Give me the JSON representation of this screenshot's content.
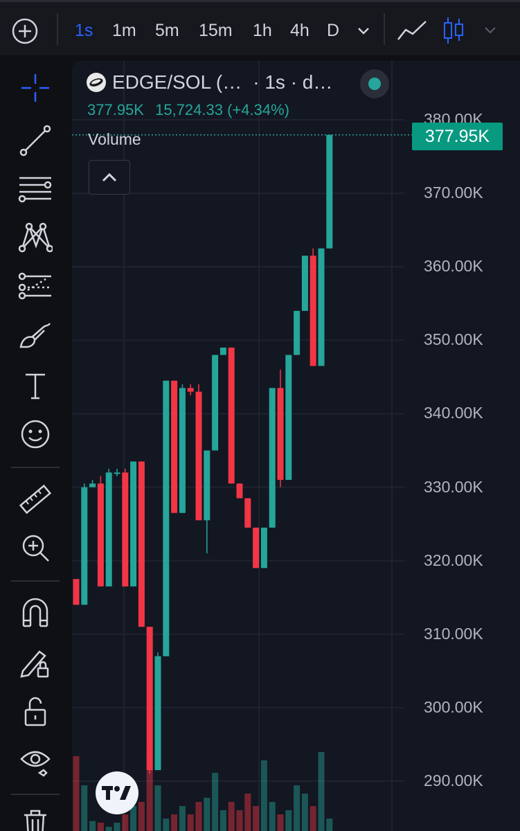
{
  "toolbar": {
    "timeframes": [
      "1s",
      "1m",
      "5m",
      "15m",
      "1h",
      "4h",
      "D"
    ],
    "active_timeframe": "1s",
    "icons": [
      "plus-circle-icon",
      "chevron-down-icon",
      "line-chart-icon",
      "candles-icon",
      "chevron-down-icon"
    ]
  },
  "left_tools": [
    "crosshair-icon",
    "trend-line-icon",
    "horizontal-lines-icon",
    "pattern-icon",
    "projection-icon",
    "brush-icon",
    "text-icon",
    "emoji-icon",
    "ruler-icon",
    "zoom-in-icon",
    "magnet-icon",
    "lock-drawing-icon",
    "unlock-icon",
    "eye-icon",
    "trash-icon"
  ],
  "legend": {
    "symbol": "EDGE/SOL (…",
    "timeframe_text": "· 1s · d…",
    "last": "377.95K",
    "change": "15,724.33 (+4.34%)",
    "volume_label": "Volume"
  },
  "price_tag": "377.95K",
  "colors": {
    "up": "#26a69a",
    "down": "#f23645",
    "accent": "#2962ff",
    "tag": "#089981"
  },
  "chart_data": {
    "type": "candlestick",
    "y_ticks": [
      "380.00K",
      "370.00K",
      "360.00K",
      "350.00K",
      "340.00K",
      "330.00K",
      "320.00K",
      "310.00K",
      "300.00K",
      "290.00K"
    ],
    "ylim": [
      286000,
      381000
    ],
    "candles": [
      {
        "o": 317.5,
        "h": 317.5,
        "l": 314.0,
        "c": 314.0
      },
      {
        "o": 314.0,
        "h": 330.5,
        "l": 314.0,
        "c": 330.0
      },
      {
        "o": 330.0,
        "h": 331.0,
        "l": 330.0,
        "c": 330.5
      },
      {
        "o": 330.5,
        "h": 331.5,
        "l": 316.5,
        "c": 316.5
      },
      {
        "o": 316.5,
        "h": 332.5,
        "l": 316.5,
        "c": 332.0
      },
      {
        "o": 332.0,
        "h": 332.5,
        "l": 331.5,
        "c": 332.0
      },
      {
        "o": 332.0,
        "h": 332.5,
        "l": 316.5,
        "c": 316.5
      },
      {
        "o": 316.5,
        "h": 333.5,
        "l": 316.5,
        "c": 333.5
      },
      {
        "o": 333.5,
        "h": 333.5,
        "l": 311.0,
        "c": 311.0
      },
      {
        "o": 311.0,
        "h": 311.0,
        "l": 291.0,
        "c": 291.5
      },
      {
        "o": 291.5,
        "h": 307.5,
        "l": 291.5,
        "c": 307.0
      },
      {
        "o": 307.0,
        "h": 344.5,
        "l": 307.0,
        "c": 344.5
      },
      {
        "o": 344.5,
        "h": 344.5,
        "l": 326.5,
        "c": 326.5
      },
      {
        "o": 326.5,
        "h": 344.0,
        "l": 326.5,
        "c": 343.5
      },
      {
        "o": 343.5,
        "h": 344.0,
        "l": 342.5,
        "c": 343.0
      },
      {
        "o": 343.0,
        "h": 344.0,
        "l": 325.5,
        "c": 325.5
      },
      {
        "o": 325.5,
        "h": 335.0,
        "l": 321.0,
        "c": 335.0
      },
      {
        "o": 335.0,
        "h": 348.0,
        "l": 335.0,
        "c": 348.0
      },
      {
        "o": 348.0,
        "h": 349.0,
        "l": 348.0,
        "c": 349.0
      },
      {
        "o": 349.0,
        "h": 349.0,
        "l": 330.5,
        "c": 330.5
      },
      {
        "o": 330.5,
        "h": 330.5,
        "l": 328.5,
        "c": 328.5
      },
      {
        "o": 328.5,
        "h": 328.5,
        "l": 324.5,
        "c": 324.5
      },
      {
        "o": 324.5,
        "h": 324.5,
        "l": 319.0,
        "c": 319.0
      },
      {
        "o": 319.0,
        "h": 324.5,
        "l": 319.0,
        "c": 324.5
      },
      {
        "o": 324.5,
        "h": 343.5,
        "l": 324.5,
        "c": 343.5
      },
      {
        "o": 343.5,
        "h": 346.0,
        "l": 330.0,
        "c": 331.0
      },
      {
        "o": 331.0,
        "h": 348.0,
        "l": 331.0,
        "c": 348.0
      },
      {
        "o": 348.0,
        "h": 354.0,
        "l": 348.0,
        "c": 354.0
      },
      {
        "o": 354.0,
        "h": 361.5,
        "l": 354.0,
        "c": 361.5
      },
      {
        "o": 361.5,
        "h": 362.5,
        "l": 346.5,
        "c": 346.5
      },
      {
        "o": 346.5,
        "h": 362.5,
        "l": 346.5,
        "c": 362.5
      },
      {
        "o": 362.5,
        "h": 377.95,
        "l": 362.5,
        "c": 377.95
      }
    ],
    "volume_relative": [
      0.9,
      0.55,
      0.12,
      0.1,
      0.05,
      0.1,
      0.2,
      0.3,
      0.35,
      1.0,
      0.55,
      0.15,
      0.2,
      0.3,
      0.2,
      0.35,
      0.4,
      0.7,
      0.25,
      0.35,
      0.25,
      0.45,
      0.3,
      0.85,
      0.35,
      0.2,
      0.25,
      0.55,
      0.45,
      0.3,
      0.95,
      0.15
    ]
  }
}
